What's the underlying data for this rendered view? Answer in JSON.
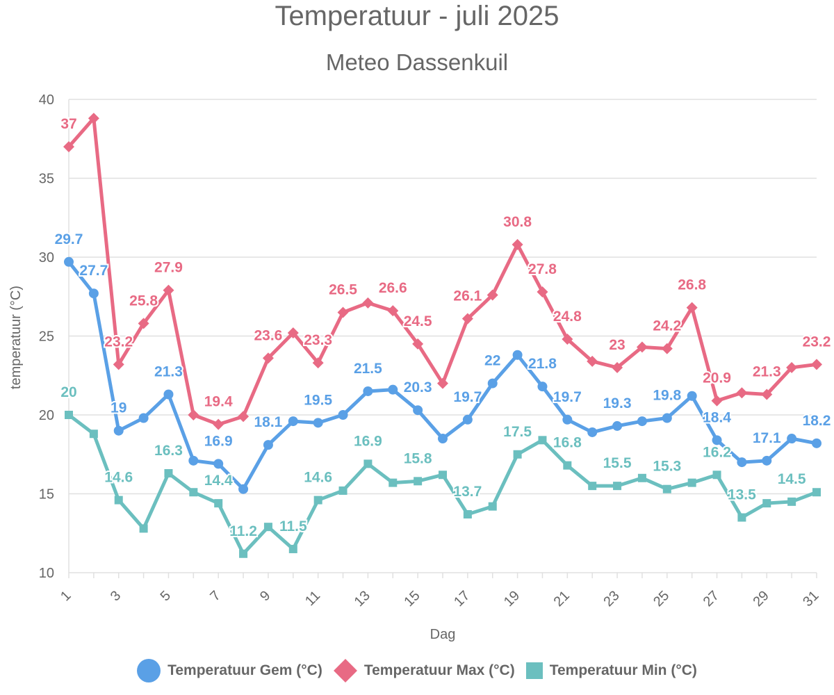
{
  "title": "Temperatuur - juli 2025",
  "subtitle": "Meteo Dassenkuil",
  "chart_data": {
    "type": "line",
    "xlabel": "Dag",
    "ylabel": "temperatuur (°C)",
    "x": [
      1,
      2,
      3,
      4,
      5,
      6,
      7,
      8,
      9,
      10,
      11,
      12,
      13,
      14,
      15,
      16,
      17,
      18,
      19,
      20,
      21,
      22,
      23,
      24,
      25,
      26,
      27,
      28,
      29,
      30,
      31
    ],
    "xticks": [
      1,
      3,
      5,
      7,
      9,
      11,
      13,
      15,
      17,
      19,
      21,
      23,
      25,
      27,
      29,
      31
    ],
    "xlim": [
      1,
      31
    ],
    "ylim": [
      10,
      40
    ],
    "yticks": [
      10,
      15,
      20,
      25,
      30,
      35,
      40
    ],
    "grid": true,
    "legend": "bottom",
    "series": [
      {
        "name": "Temperatuur Gem (°C)",
        "color": "#5aa0e6",
        "marker": "circle",
        "values": [
          29.7,
          27.7,
          19,
          19.8,
          21.3,
          17.1,
          16.9,
          15.3,
          18.1,
          19.6,
          19.5,
          20,
          21.5,
          21.6,
          20.3,
          18.5,
          19.7,
          22,
          23.8,
          21.8,
          19.7,
          18.9,
          19.3,
          19.6,
          19.8,
          21.2,
          18.4,
          17,
          17.1,
          18.5,
          18.2
        ],
        "labels": [
          "29.7",
          "27.7",
          "19",
          "",
          "21.3",
          "",
          "16.9",
          "",
          "18.1",
          "",
          "19.5",
          "",
          "21.5",
          "",
          "20.3",
          "",
          "19.7",
          "22",
          "",
          "21.8",
          "19.7",
          "",
          "19.3",
          "",
          "19.8",
          "",
          "18.4",
          "",
          "17.1",
          "",
          "18.2"
        ]
      },
      {
        "name": "Temperatuur Max (°C)",
        "color": "#e86a84",
        "marker": "diamond",
        "values": [
          37,
          38.8,
          23.2,
          25.8,
          27.9,
          20,
          19.4,
          19.9,
          23.6,
          25.2,
          23.3,
          26.5,
          27.1,
          26.6,
          24.5,
          22,
          26.1,
          27.6,
          30.8,
          27.8,
          24.8,
          23.4,
          23,
          24.3,
          24.2,
          26.8,
          20.9,
          21.4,
          21.3,
          23,
          23.2
        ],
        "labels": [
          "37",
          "",
          "23.2",
          "25.8",
          "27.9",
          "",
          "19.4",
          "",
          "23.6",
          "",
          "23.3",
          "26.5",
          "",
          "26.6",
          "24.5",
          "",
          "26.1",
          "",
          "30.8",
          "27.8",
          "24.8",
          "",
          "23",
          "",
          "24.2",
          "26.8",
          "20.9",
          "",
          "21.3",
          "",
          "23.2"
        ]
      },
      {
        "name": "Temperatuur Min (°C)",
        "color": "#6bbfbf",
        "marker": "square",
        "values": [
          20,
          18.8,
          14.6,
          12.8,
          16.3,
          15.1,
          14.4,
          11.2,
          12.9,
          11.5,
          14.6,
          15.2,
          16.9,
          15.7,
          15.8,
          16.2,
          13.7,
          14.2,
          17.5,
          18.4,
          16.8,
          15.5,
          15.5,
          16,
          15.3,
          15.7,
          16.2,
          13.5,
          14.4,
          14.5,
          15.1
        ],
        "labels": [
          "20",
          "",
          "14.6",
          "",
          "16.3",
          "",
          "14.4",
          "11.2",
          "",
          "11.5",
          "14.6",
          "",
          "16.9",
          "",
          "15.8",
          "",
          "13.7",
          "",
          "17.5",
          "",
          "16.8",
          "",
          "15.5",
          "",
          "15.3",
          "",
          "16.2",
          "13.5",
          "",
          "14.5",
          ""
        ]
      }
    ]
  }
}
